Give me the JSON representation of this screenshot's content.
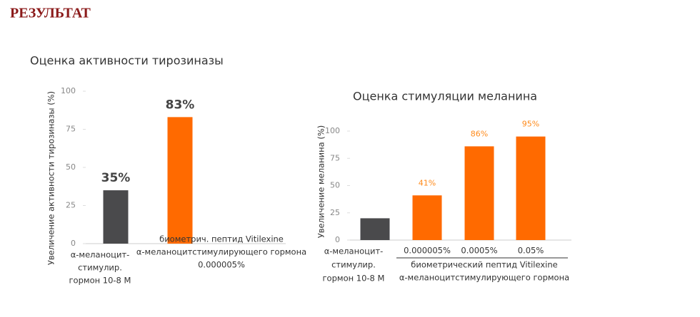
{
  "heading": "РЕЗУЛЬТАТ",
  "chart_data": [
    {
      "type": "bar",
      "title": "Оценка активности тирозиназы",
      "ylabel": "Увеличение активности тирозиназы (%)",
      "categories": [
        [
          "α-меланоцит-",
          "стимулир.",
          "гормон 10-8 М"
        ],
        [
          "биометрич. пептид Vitilexine",
          "α-меланоцитстимулирующего гормона",
          "0.000005%"
        ]
      ],
      "values": [
        35,
        83
      ],
      "value_labels": [
        "35%",
        "83%"
      ],
      "colors": [
        "#4a4a4c",
        "#ff6a00"
      ],
      "ylim": [
        0,
        100
      ],
      "yticks": [
        0,
        25,
        50,
        75,
        100
      ]
    },
    {
      "type": "bar",
      "title": "Оценка стимуляции меланина",
      "ylabel": "Увеличение меланина (%)",
      "categories": [
        [
          "α-меланоцит-",
          "стимулир.",
          "гормон 10-8 М"
        ],
        [
          "0.000005%"
        ],
        [
          "0.0005%"
        ],
        [
          "0.05%"
        ]
      ],
      "group_label": [
        "биометрический пептид Vitilexine",
        "α-меланоцитстимулирующего гормона"
      ],
      "values": [
        20,
        41,
        86,
        95
      ],
      "value_labels": [
        null,
        "41%",
        "86%",
        "95%"
      ],
      "colors": [
        "#4a4a4c",
        "#ff6a00",
        "#ff6a00",
        "#ff6a00"
      ],
      "ylim": [
        0,
        100
      ],
      "yticks": [
        0,
        25,
        50,
        75,
        100
      ]
    }
  ]
}
